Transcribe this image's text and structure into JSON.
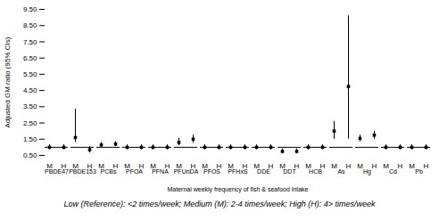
{
  "chart_data": {
    "type": "errorbar",
    "xlabel": "Maternal weekly frequency of fish & seafood intake",
    "ylabel": "Adjusted GM ratio (95% CIs)",
    "footnote": "Low (Reference): <2 times/week; Medium (M): 2-4 times/week; High (H): 4> times/week",
    "categories": [
      "PBDE47",
      "PBDE153",
      "PCBs",
      "PFOA",
      "PFNA",
      "PFUnDA",
      "PFOS",
      "PFHxS",
      "DDE",
      "DDT",
      "HCB",
      "As",
      "Hg",
      "Cd",
      "Pb"
    ],
    "series": [
      {
        "name": "M",
        "values": [
          1.0,
          1.6,
          1.15,
          1.0,
          1.0,
          1.3,
          1.0,
          1.0,
          1.0,
          0.75,
          1.0,
          2.0,
          1.55,
          1.0,
          1.0
        ],
        "lo": [
          0.85,
          1.3,
          1.0,
          0.85,
          0.85,
          1.1,
          0.85,
          0.85,
          0.85,
          0.6,
          0.85,
          1.5,
          1.35,
          0.85,
          0.85
        ],
        "hi": [
          1.15,
          3.35,
          1.3,
          1.15,
          1.15,
          1.55,
          1.15,
          1.15,
          1.15,
          0.9,
          1.15,
          2.6,
          1.75,
          1.15,
          1.15
        ]
      },
      {
        "name": "H",
        "values": [
          1.0,
          0.85,
          1.2,
          1.0,
          1.0,
          1.5,
          1.0,
          1.0,
          1.0,
          0.75,
          1.0,
          4.75,
          1.75,
          1.0,
          1.0
        ],
        "lo": [
          0.85,
          0.65,
          1.05,
          0.85,
          0.85,
          1.25,
          0.85,
          0.85,
          0.85,
          0.6,
          0.85,
          1.5,
          1.5,
          0.85,
          0.85
        ],
        "hi": [
          1.15,
          1.05,
          1.35,
          1.15,
          1.15,
          1.75,
          1.15,
          1.15,
          1.15,
          0.9,
          1.15,
          9.1,
          2.0,
          1.15,
          1.15
        ]
      }
    ],
    "reference_line": 1.0,
    "ylim": [
      0.5,
      9.5
    ],
    "yticks": [
      {
        "value": 0.5,
        "label": "0.50"
      },
      {
        "value": 1.5,
        "label": "1.50"
      },
      {
        "value": 2.5,
        "label": "2.50"
      },
      {
        "value": 3.5,
        "label": "3.50"
      },
      {
        "value": 4.5,
        "label": "4.50"
      },
      {
        "value": 5.5,
        "label": "5.50"
      },
      {
        "value": 6.5,
        "label": "6.50"
      },
      {
        "value": 7.5,
        "label": "7.50"
      },
      {
        "value": 8.5,
        "label": "8.50"
      },
      {
        "value": 9.5,
        "label": "9.50"
      }
    ],
    "grid": false
  }
}
